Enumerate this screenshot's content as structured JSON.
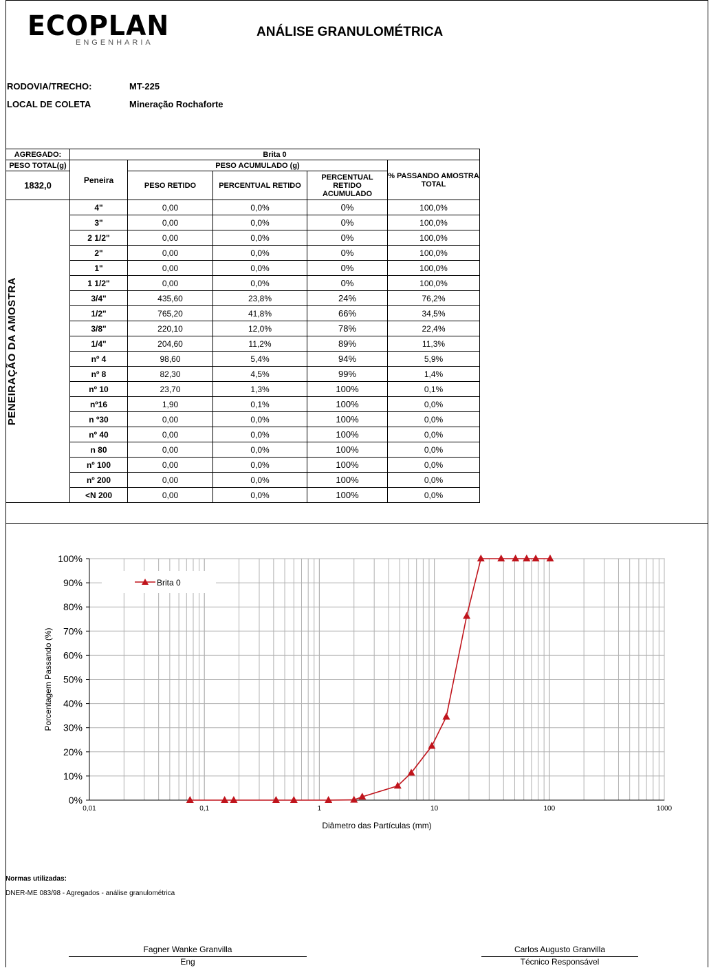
{
  "logo": {
    "name": "ECOPLAN",
    "sub": "ENGENHARIA"
  },
  "title": "ANÁLISE GRANULOMÉTRICA",
  "meta": [
    {
      "key": "RODOVIA/TRECHO:",
      "value": "MT-225"
    },
    {
      "key": "LOCAL DE COLETA",
      "value": "Mineração Rochaforte"
    }
  ],
  "table": {
    "agregado_label": "AGREGADO:",
    "agregado_value": "Brita 0",
    "peso_total_label": "PESO TOTAL(g)",
    "peso_total_value": "1832,0",
    "peneira_label": "Peneira",
    "peso_acumulado_label": "PESO ACUMULADO (g)",
    "col_peso_retido": "PESO RETIDO",
    "col_percentual_retido": "PERCENTUAL RETIDO",
    "col_percentual_acumulado": "PERCENTUAL RETIDO ACUMULADO",
    "col_passando": "% PASSANDO AMOSTRA TOTAL",
    "side_label": "PENEIRAÇÃO DA AMOSTRA",
    "rows": [
      {
        "peneira": "4\"",
        "peso": "0,00",
        "pct": "0,0%",
        "acum": "0%",
        "pass": "100,0%"
      },
      {
        "peneira": "3\"",
        "peso": "0,00",
        "pct": "0,0%",
        "acum": "0%",
        "pass": "100,0%"
      },
      {
        "peneira": "2 1/2\"",
        "peso": "0,00",
        "pct": "0,0%",
        "acum": "0%",
        "pass": "100,0%"
      },
      {
        "peneira": "2\"",
        "peso": "0,00",
        "pct": "0,0%",
        "acum": "0%",
        "pass": "100,0%"
      },
      {
        "peneira": "1\"",
        "peso": "0,00",
        "pct": "0,0%",
        "acum": "0%",
        "pass": "100,0%"
      },
      {
        "peneira": "1 1/2\"",
        "peso": "0,00",
        "pct": "0,0%",
        "acum": "0%",
        "pass": "100,0%"
      },
      {
        "peneira": "3/4\"",
        "peso": "435,60",
        "pct": "23,8%",
        "acum": "24%",
        "pass": "76,2%"
      },
      {
        "peneira": "1/2\"",
        "peso": "765,20",
        "pct": "41,8%",
        "acum": "66%",
        "pass": "34,5%"
      },
      {
        "peneira": "3/8\"",
        "peso": "220,10",
        "pct": "12,0%",
        "acum": "78%",
        "pass": "22,4%"
      },
      {
        "peneira": "1/4\"",
        "peso": "204,60",
        "pct": "11,2%",
        "acum": "89%",
        "pass": "11,3%"
      },
      {
        "peneira": "nº 4",
        "peso": "98,60",
        "pct": "5,4%",
        "acum": "94%",
        "pass": "5,9%"
      },
      {
        "peneira": "nº 8",
        "peso": "82,30",
        "pct": "4,5%",
        "acum": "99%",
        "pass": "1,4%"
      },
      {
        "peneira": "nº 10",
        "peso": "23,70",
        "pct": "1,3%",
        "acum": "100%",
        "pass": "0,1%"
      },
      {
        "peneira": "nº16",
        "peso": "1,90",
        "pct": "0,1%",
        "acum": "100%",
        "pass": "0,0%"
      },
      {
        "peneira": "n º30",
        "peso": "0,00",
        "pct": "0,0%",
        "acum": "100%",
        "pass": "0,0%"
      },
      {
        "peneira": "nº 40",
        "peso": "0,00",
        "pct": "0,0%",
        "acum": "100%",
        "pass": "0,0%"
      },
      {
        "peneira": "n 80",
        "peso": "0,00",
        "pct": "0,0%",
        "acum": "100%",
        "pass": "0,0%"
      },
      {
        "peneira": "nº 100",
        "peso": "0,00",
        "pct": "0,0%",
        "acum": "100%",
        "pass": "0,0%"
      },
      {
        "peneira": "nº 200",
        "peso": "0,00",
        "pct": "0,0%",
        "acum": "100%",
        "pass": "0,0%"
      },
      {
        "peneira": "<N 200",
        "peso": "0,00",
        "pct": "0,0%",
        "acum": "100%",
        "pass": "0,0%"
      }
    ]
  },
  "chart_data": {
    "type": "line",
    "title": "",
    "xlabel": "Diâmetro das Partículas (mm)",
    "ylabel": "Porcentagem Passando (%)",
    "x_scale": "log",
    "xlim": [
      0.01,
      1000
    ],
    "ylim": [
      0,
      100
    ],
    "x_tick_labels": [
      "0,01",
      "0,1",
      "1",
      "10",
      "100",
      "1000"
    ],
    "x_ticks": [
      0.01,
      0.1,
      1,
      10,
      100,
      1000
    ],
    "y_tick_labels": [
      "0%",
      "10%",
      "20%",
      "30%",
      "40%",
      "50%",
      "60%",
      "70%",
      "80%",
      "90%",
      "100%"
    ],
    "y_ticks": [
      0,
      10,
      20,
      30,
      40,
      50,
      60,
      70,
      80,
      90,
      100
    ],
    "grid": true,
    "legend_position": "top-left",
    "series_color": "#c0141c",
    "series": [
      {
        "name": "Brita 0",
        "x": [
          0.075,
          0.15,
          0.18,
          0.42,
          0.6,
          1.2,
          2.0,
          2.36,
          4.8,
          6.3,
          9.5,
          12.7,
          19.1,
          25.4,
          38.1,
          50.8,
          63.5,
          76.2,
          101.6
        ],
        "y": [
          0,
          0,
          0,
          0,
          0,
          0,
          0.1,
          1.4,
          5.9,
          11.3,
          22.4,
          34.5,
          76.2,
          100,
          100,
          100,
          100,
          100,
          100
        ]
      }
    ]
  },
  "norms": {
    "heading": "Normas utilizadas:",
    "text": "DNER-ME 083/98 - Agregados - análise granulométrica"
  },
  "signatures": [
    {
      "name": "Fagner Wanke Granvilla",
      "role": "Eng"
    },
    {
      "name": "Carlos Augusto Granvilla",
      "role": "Técnico Responsável"
    }
  ]
}
